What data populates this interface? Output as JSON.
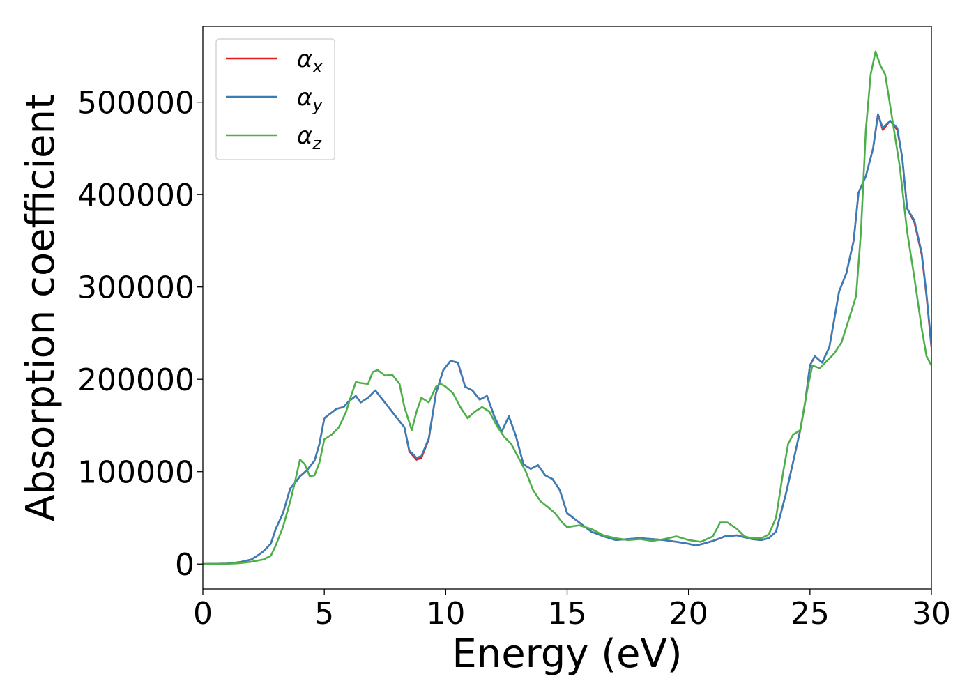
{
  "chart_data": {
    "type": "line",
    "title": "",
    "xlabel": "Energy (eV)",
    "ylabel": "Absorption coefficient",
    "xlim": [
      0,
      30
    ],
    "ylim": [
      -27000,
      582000
    ],
    "xticks": [
      0,
      5,
      10,
      15,
      20,
      25,
      30
    ],
    "xtick_labels": [
      "0",
      "5",
      "10",
      "15",
      "20",
      "25",
      "30"
    ],
    "yticks": [
      0,
      100000,
      200000,
      300000,
      400000,
      500000
    ],
    "ytick_labels": [
      "0",
      "100000",
      "200000",
      "300000",
      "400000",
      "500000"
    ],
    "grid": false,
    "legend_position": "top-left",
    "series": [
      {
        "name": "α_x",
        "name_base": "α",
        "name_sub": "x",
        "color": "#e41a1c",
        "x": [
          0,
          1,
          1.5,
          2,
          2.3,
          2.5,
          2.8,
          3.0,
          3.3,
          3.6,
          3.8,
          4.0,
          4.3,
          4.6,
          4.8,
          5.0,
          5.2,
          5.5,
          5.8,
          6.0,
          6.3,
          6.5,
          6.8,
          7.1,
          7.4,
          7.7,
          8.0,
          8.3,
          8.5,
          8.8,
          9.0,
          9.3,
          9.6,
          9.9,
          10.2,
          10.5,
          10.8,
          11.1,
          11.4,
          11.7,
          12.0,
          12.3,
          12.6,
          12.9,
          13.2,
          13.5,
          13.8,
          14.1,
          14.4,
          14.7,
          15.0,
          15.5,
          16.0,
          16.5,
          17.0,
          17.5,
          18.0,
          18.5,
          19.0,
          19.5,
          20.0,
          20.3,
          20.6,
          21.0,
          21.5,
          22.0,
          22.3,
          22.6,
          23.0,
          23.3,
          23.6,
          24.0,
          24.3,
          24.6,
          24.8,
          25.0,
          25.2,
          25.5,
          25.8,
          26.0,
          26.2,
          26.5,
          26.8,
          27.0,
          27.3,
          27.6,
          27.8,
          28.0,
          28.3,
          28.6,
          28.8,
          29.0,
          29.3,
          29.6,
          29.8,
          30.0
        ],
        "values": [
          0,
          500,
          2000,
          5000,
          10000,
          14000,
          22000,
          38000,
          55000,
          82000,
          88000,
          95000,
          102000,
          112000,
          130000,
          158000,
          162000,
          168000,
          170000,
          176000,
          182000,
          175000,
          180000,
          188000,
          178000,
          168000,
          158000,
          148000,
          122000,
          113000,
          115000,
          135000,
          185000,
          210000,
          220000,
          218000,
          192000,
          188000,
          178000,
          182000,
          160000,
          143000,
          160000,
          138000,
          108000,
          103000,
          107000,
          96000,
          92000,
          80000,
          55000,
          45000,
          35000,
          30000,
          26000,
          27000,
          28000,
          27000,
          26000,
          24000,
          22000,
          20000,
          22000,
          25000,
          30000,
          31000,
          29000,
          27000,
          26000,
          28000,
          35000,
          75000,
          110000,
          145000,
          175000,
          215000,
          225000,
          218000,
          235000,
          265000,
          295000,
          315000,
          350000,
          402000,
          420000,
          450000,
          487000,
          470000,
          480000,
          470000,
          440000,
          385000,
          370000,
          335000,
          290000,
          235000
        ]
      },
      {
        "name": "α_y",
        "name_base": "α",
        "name_sub": "y",
        "color": "#377eb8",
        "x": [
          0,
          1,
          1.5,
          2,
          2.3,
          2.5,
          2.8,
          3.0,
          3.3,
          3.6,
          3.8,
          4.0,
          4.3,
          4.6,
          4.8,
          5.0,
          5.2,
          5.5,
          5.8,
          6.0,
          6.3,
          6.5,
          6.8,
          7.1,
          7.4,
          7.7,
          8.0,
          8.3,
          8.5,
          8.8,
          9.0,
          9.3,
          9.6,
          9.9,
          10.2,
          10.5,
          10.8,
          11.1,
          11.4,
          11.7,
          12.0,
          12.3,
          12.6,
          12.9,
          13.2,
          13.5,
          13.8,
          14.1,
          14.4,
          14.7,
          15.0,
          15.5,
          16.0,
          16.5,
          17.0,
          17.5,
          18.0,
          18.5,
          19.0,
          19.5,
          20.0,
          20.3,
          20.6,
          21.0,
          21.5,
          22.0,
          22.3,
          22.6,
          23.0,
          23.3,
          23.6,
          24.0,
          24.3,
          24.6,
          24.8,
          25.0,
          25.2,
          25.5,
          25.8,
          26.0,
          26.2,
          26.5,
          26.8,
          27.0,
          27.3,
          27.6,
          27.8,
          28.0,
          28.3,
          28.6,
          28.8,
          29.0,
          29.3,
          29.6,
          29.8,
          30.0
        ],
        "values": [
          0,
          500,
          2000,
          5000,
          10000,
          14000,
          22000,
          38000,
          55000,
          82000,
          88000,
          95000,
          102000,
          112000,
          130000,
          158000,
          162000,
          168000,
          170000,
          176000,
          182000,
          175000,
          180000,
          188000,
          178000,
          168000,
          158000,
          148000,
          123000,
          115000,
          117000,
          136000,
          185000,
          210000,
          220000,
          218000,
          192000,
          188000,
          178000,
          182000,
          160000,
          143000,
          160000,
          138000,
          108000,
          103000,
          107000,
          96000,
          92000,
          80000,
          55000,
          45000,
          35000,
          30000,
          26000,
          27000,
          28000,
          27000,
          26000,
          24000,
          22000,
          20000,
          22000,
          25000,
          30000,
          31000,
          29000,
          27000,
          26000,
          28000,
          35000,
          75000,
          110000,
          145000,
          175000,
          215000,
          225000,
          218000,
          235000,
          265000,
          295000,
          315000,
          350000,
          402000,
          420000,
          450000,
          487000,
          472000,
          480000,
          472000,
          440000,
          385000,
          372000,
          337000,
          292000,
          237000
        ]
      },
      {
        "name": "α_z",
        "name_base": "α",
        "name_sub": "z",
        "color": "#4daf4a",
        "x": [
          0,
          1,
          1.5,
          2,
          2.5,
          2.8,
          3.0,
          3.3,
          3.6,
          3.8,
          4.0,
          4.2,
          4.4,
          4.6,
          4.8,
          5.0,
          5.3,
          5.6,
          5.9,
          6.1,
          6.3,
          6.5,
          6.8,
          7.0,
          7.2,
          7.5,
          7.8,
          8.1,
          8.3,
          8.6,
          8.8,
          9.0,
          9.3,
          9.6,
          9.8,
          10.0,
          10.3,
          10.6,
          10.9,
          11.2,
          11.5,
          11.8,
          12.1,
          12.4,
          12.7,
          13.0,
          13.3,
          13.6,
          13.9,
          14.2,
          14.5,
          14.8,
          15.0,
          15.5,
          16.0,
          16.5,
          17.0,
          17.5,
          18.0,
          18.5,
          19.0,
          19.5,
          20.0,
          20.5,
          21.0,
          21.3,
          21.6,
          22.0,
          22.3,
          22.6,
          23.0,
          23.3,
          23.6,
          23.9,
          24.1,
          24.3,
          24.6,
          24.9,
          25.1,
          25.4,
          25.7,
          26.0,
          26.3,
          26.6,
          26.9,
          27.1,
          27.3,
          27.5,
          27.7,
          27.9,
          28.1,
          28.4,
          28.7,
          29.0,
          29.3,
          29.6,
          29.8,
          30.0
        ],
        "values": [
          0,
          300,
          1000,
          2500,
          5000,
          9000,
          20000,
          40000,
          68000,
          90000,
          113000,
          108000,
          95000,
          96000,
          110000,
          135000,
          140000,
          148000,
          165000,
          182000,
          197000,
          196000,
          195000,
          208000,
          210000,
          204000,
          205000,
          195000,
          170000,
          145000,
          165000,
          180000,
          175000,
          192000,
          195000,
          192000,
          185000,
          170000,
          158000,
          165000,
          170000,
          165000,
          150000,
          138000,
          130000,
          115000,
          100000,
          80000,
          68000,
          62000,
          55000,
          45000,
          40000,
          42000,
          38000,
          31000,
          28000,
          26000,
          27000,
          25000,
          27000,
          30000,
          26000,
          24000,
          30000,
          45000,
          45000,
          38000,
          30000,
          28000,
          28000,
          32000,
          50000,
          100000,
          130000,
          140000,
          145000,
          190000,
          215000,
          212000,
          220000,
          228000,
          240000,
          265000,
          290000,
          360000,
          470000,
          530000,
          555000,
          540000,
          530000,
          480000,
          430000,
          360000,
          310000,
          255000,
          225000,
          215000
        ]
      }
    ]
  }
}
